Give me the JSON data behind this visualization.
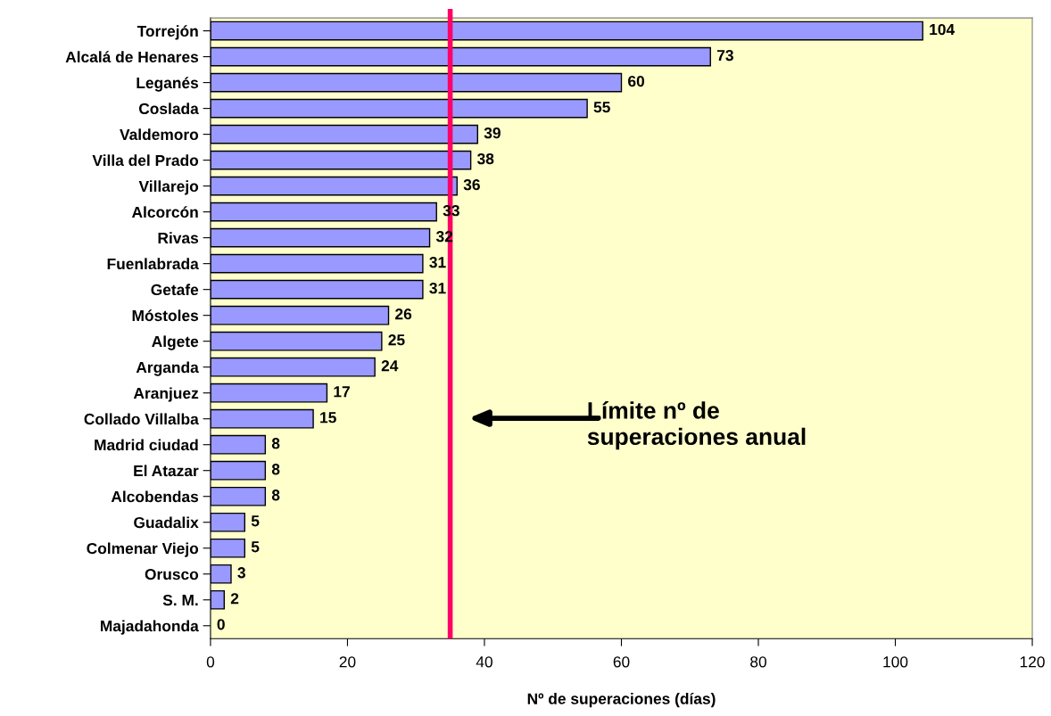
{
  "chart_data": {
    "type": "bar",
    "orientation": "horizontal",
    "xlabel": "Nº de superaciones (días)",
    "categories": [
      "Torrejón",
      "Alcalá de Henares",
      "Leganés",
      "Coslada",
      "Valdemoro",
      "Villa del Prado",
      "Villarejo",
      "Alcorcón",
      "Rivas",
      "Fuenlabrada",
      "Getafe",
      "Móstoles",
      "Algete",
      "Arganda",
      "Aranjuez",
      "Collado Villalba",
      "Madrid ciudad",
      "El Atazar",
      "Alcobendas",
      "Guadalix",
      "Colmenar Viejo",
      "Orusco",
      "S. M.",
      "Majadahonda"
    ],
    "values": [
      104,
      73,
      60,
      55,
      39,
      38,
      36,
      33,
      32,
      31,
      31,
      26,
      25,
      24,
      17,
      15,
      8,
      8,
      8,
      5,
      5,
      3,
      2,
      0
    ],
    "color": "#9999ff",
    "data_labels": true,
    "xlim": [
      0,
      120
    ],
    "xticks": [
      0,
      20,
      40,
      60,
      80,
      100,
      120
    ],
    "grid": false,
    "legend": false,
    "ref_lines": [
      {
        "axis": "x",
        "value": 35,
        "color": "#ff0066"
      }
    ],
    "annotations": [
      "Límite nº de\nsuperaciones anual"
    ]
  }
}
